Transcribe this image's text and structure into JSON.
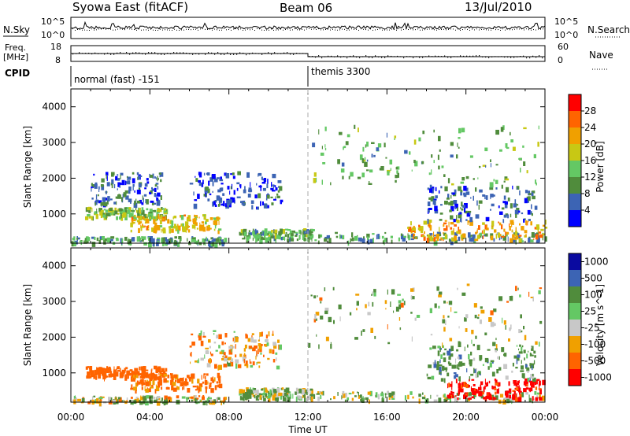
{
  "header": {
    "title": "Syowa East (fitACF)",
    "beam": "Beam 06",
    "date": "13/Jul/2010"
  },
  "panels": {
    "nsky_label": "N.Sky",
    "nsky_ticks": [
      "10^5",
      "10^0"
    ],
    "nsearch_label": "N.Search",
    "freq_label_1": "Freq.",
    "freq_label_2": "[MHz]",
    "freq_ticks": [
      "18",
      "8"
    ],
    "nave_label": "Nave",
    "nave_ticks": [
      "60",
      "0"
    ],
    "cpid_label": "CPID",
    "cpid_segments": [
      {
        "label": "normal (fast) -151",
        "start_hour": 0
      },
      {
        "label": "themis 3300",
        "start_hour": 12
      }
    ]
  },
  "chart_data": [
    {
      "type": "heatmap",
      "title": "",
      "xlabel": "Time UT",
      "ylabel": "Slant Range [km]",
      "xlim": [
        0,
        24
      ],
      "ylim": [
        180,
        4500
      ],
      "yticks": [
        1000,
        2000,
        3000,
        4000
      ],
      "xtick_labels": [
        "00:00",
        "04:00",
        "08:00",
        "12:00",
        "16:00",
        "20:00",
        "00:00"
      ],
      "colorbar": {
        "label": "Power [dB]",
        "range": [
          0,
          30
        ],
        "ticks": [
          "4",
          "8",
          "12",
          "16",
          "20",
          "24",
          "28"
        ],
        "colors": [
          "#0000ff",
          "#3c64b4",
          "#508c3c",
          "#64c864",
          "#c8c814",
          "#f0a000",
          "#ff6400",
          "#ff0000"
        ]
      },
      "scatter_regions": [
        {
          "t0": 0.7,
          "t1": 4.8,
          "r0": 900,
          "r1": 1200,
          "value": 14
        },
        {
          "t0": 1.0,
          "t1": 4.6,
          "r0": 1300,
          "r1": 2200,
          "value": 6
        },
        {
          "t0": 3.0,
          "t1": 7.5,
          "r0": 550,
          "r1": 1000,
          "value": 20
        },
        {
          "t0": 0.0,
          "t1": 7.8,
          "r0": 200,
          "r1": 380,
          "value": 10
        },
        {
          "t0": 6.0,
          "t1": 10.6,
          "r0": 1200,
          "r1": 2200,
          "value": 5
        },
        {
          "t0": 8.5,
          "t1": 12.2,
          "r0": 300,
          "r1": 600,
          "value": 12
        },
        {
          "t0": 12.0,
          "t1": 24.0,
          "r0": 250,
          "r1": 500,
          "value": 10
        },
        {
          "t0": 17.0,
          "t1": 24.0,
          "r0": 300,
          "r1": 850,
          "value": 22
        },
        {
          "t0": 18.0,
          "t1": 23.5,
          "r0": 850,
          "r1": 1800,
          "value": 7
        },
        {
          "t0": 12.0,
          "t1": 23.8,
          "r0": 1800,
          "r1": 3500,
          "value": 12
        }
      ]
    },
    {
      "type": "heatmap",
      "title": "",
      "xlabel": "Time UT",
      "ylabel": "Slant Range [km]",
      "xlim": [
        0,
        24
      ],
      "ylim": [
        180,
        4500
      ],
      "yticks": [
        1000,
        2000,
        3000,
        4000
      ],
      "xtick_labels": [
        "00:00",
        "04:00",
        "08:00",
        "12:00",
        "16:00",
        "20:00",
        "00:00"
      ],
      "colorbar": {
        "label": "Velocity [m s^-1]",
        "ticks": [
          "1000",
          "500",
          "100",
          "25",
          "-25",
          "-100",
          "-500",
          "-1000"
        ],
        "colors": [
          "#0a0aa0",
          "#3c64b4",
          "#508c3c",
          "#64c864",
          "#c8c8c8",
          "#f0a000",
          "#ff6400",
          "#ff0000"
        ]
      },
      "scatter_regions": [
        {
          "t0": 0.7,
          "t1": 4.8,
          "r0": 900,
          "r1": 1200,
          "value": -250
        },
        {
          "t0": 3.0,
          "t1": 7.5,
          "r0": 550,
          "r1": 1000,
          "value": -200
        },
        {
          "t0": 0.0,
          "t1": 7.8,
          "r0": 200,
          "r1": 380,
          "value": 0
        },
        {
          "t0": 6.0,
          "t1": 10.6,
          "r0": 1200,
          "r1": 2200,
          "value": -80
        },
        {
          "t0": 8.5,
          "t1": 12.2,
          "r0": 300,
          "r1": 600,
          "value": 60
        },
        {
          "t0": 12.0,
          "t1": 24.0,
          "r0": 250,
          "r1": 500,
          "value": 60
        },
        {
          "t0": 19.0,
          "t1": 24.0,
          "r0": 300,
          "r1": 850,
          "value": -600
        },
        {
          "t0": 18.0,
          "t1": 23.5,
          "r0": 850,
          "r1": 1800,
          "value": 150
        },
        {
          "t0": 12.0,
          "t1": 23.8,
          "r0": 1800,
          "r1": 3500,
          "value": 40
        }
      ]
    }
  ]
}
